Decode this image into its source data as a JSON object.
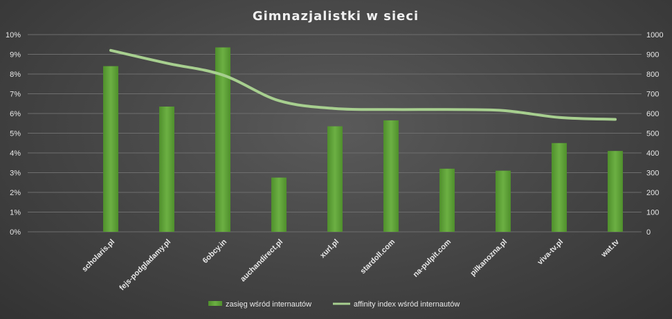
{
  "chart_data": {
    "type": "bar",
    "title": "Gimnazjalistki w sieci",
    "categories": [
      "scholaris.pl",
      "fejs-podgladamy.pl",
      "6obcy.in",
      "auchandirect.pl",
      "xurl.pl",
      "stardoll.com",
      "na-pulpit.com",
      "pilkanozna.pl",
      "viva-tv.pl",
      "wat.tv"
    ],
    "series": [
      {
        "name": "zasięg wśród internautów",
        "type": "bar",
        "axis": "left",
        "color": "#5fa33a",
        "values": [
          8.4,
          6.35,
          9.35,
          2.75,
          5.35,
          5.65,
          3.2,
          3.1,
          4.5,
          4.1
        ]
      },
      {
        "name": "affinity index wśród internautów",
        "type": "line",
        "axis": "right",
        "color": "#a7cf8f",
        "values": [
          920,
          855,
          795,
          665,
          625,
          620,
          620,
          615,
          580,
          570
        ]
      }
    ],
    "y_left": {
      "min": 0,
      "max": 10,
      "step": 1,
      "ticks": [
        "0%",
        "1%",
        "2%",
        "3%",
        "4%",
        "5%",
        "6%",
        "7%",
        "8%",
        "9%",
        "10%"
      ]
    },
    "y_right": {
      "min": 0,
      "max": 1000,
      "step": 100,
      "ticks": [
        "0",
        "100",
        "200",
        "300",
        "400",
        "500",
        "600",
        "700",
        "800",
        "900",
        "1000"
      ]
    },
    "grid": true,
    "legend_position": "bottom"
  }
}
